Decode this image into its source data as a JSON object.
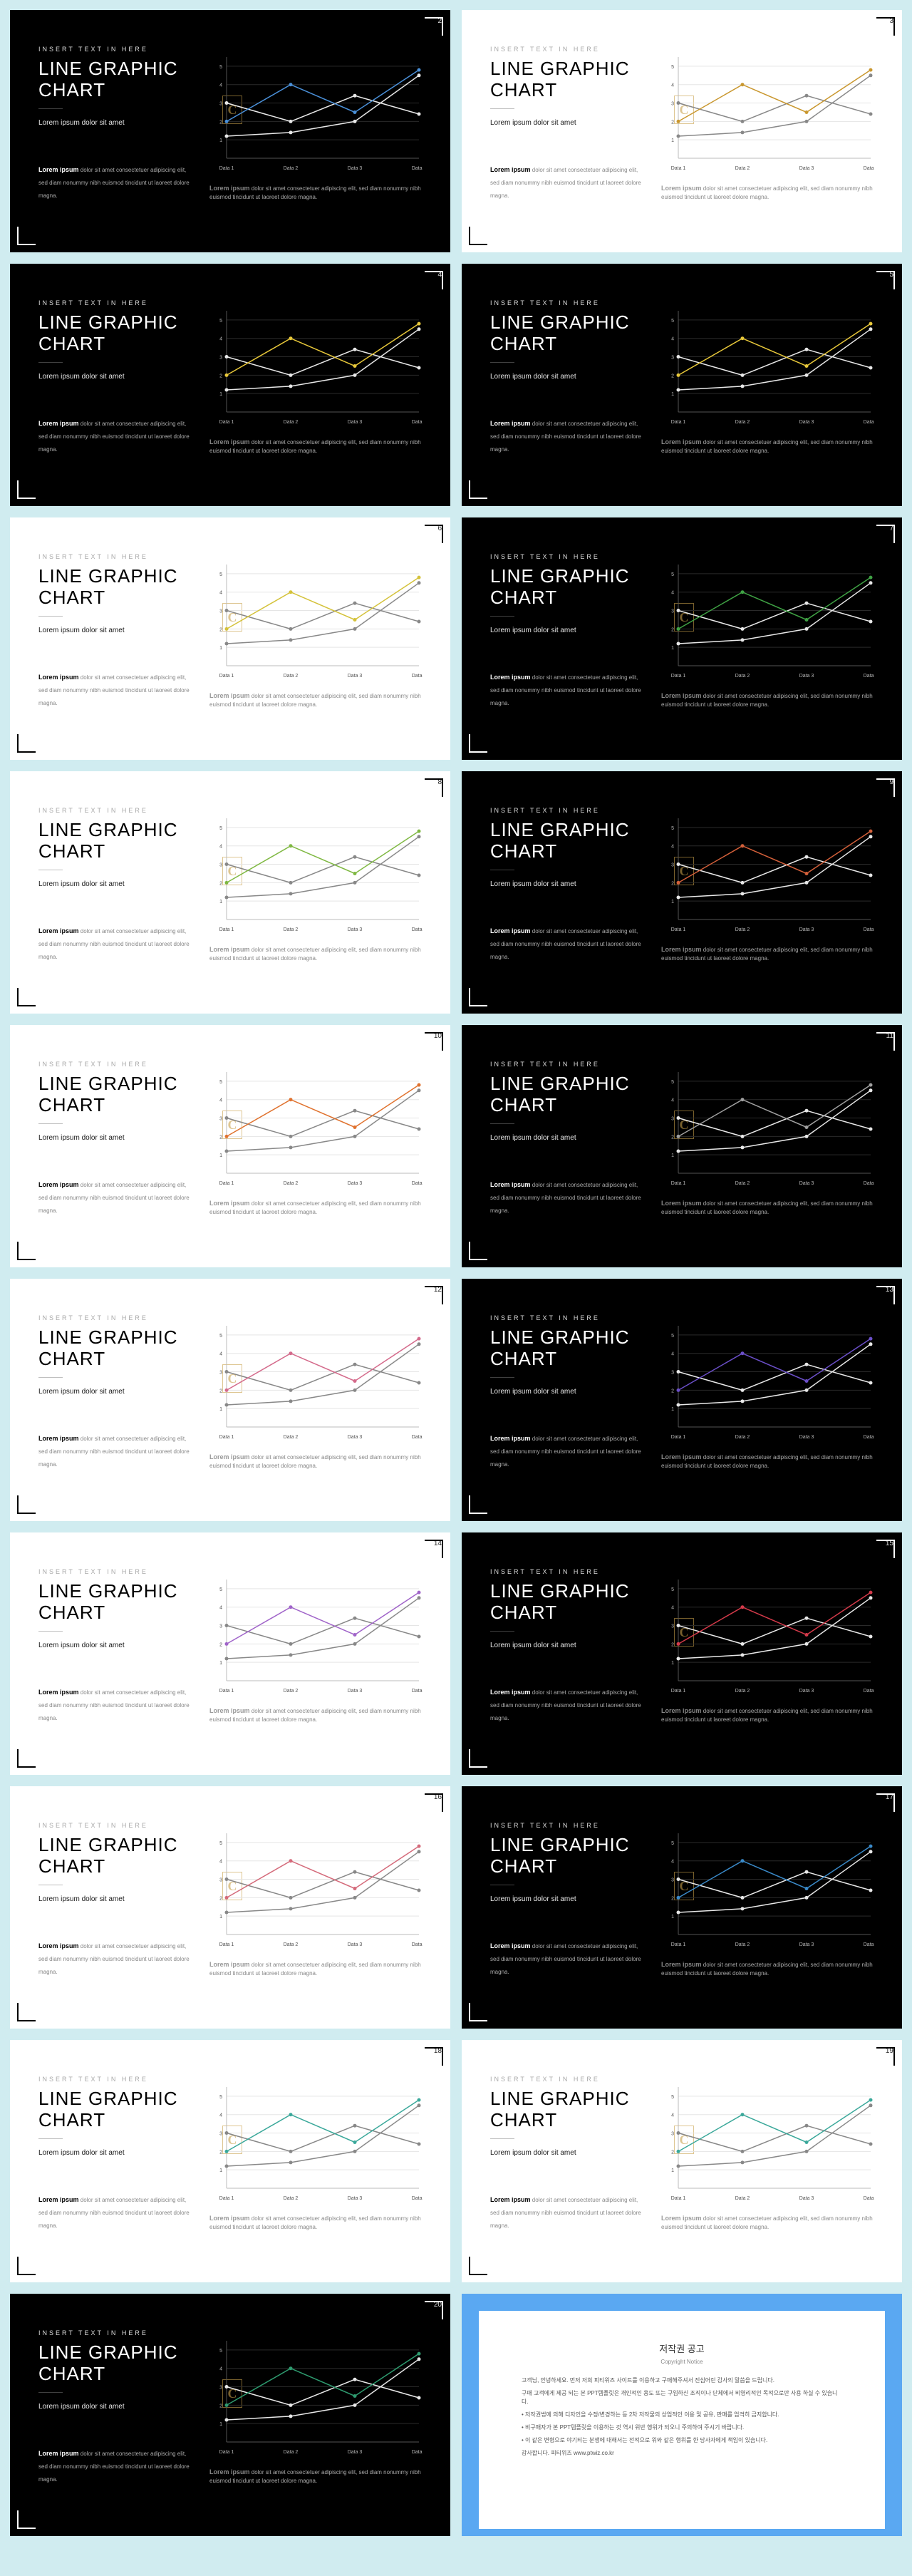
{
  "common": {
    "overline": "INSERT TEXT IN HERE",
    "title": "LINE GRAPHIC CHART",
    "subtitle": "Lorem ipsum dolor sit amet",
    "desc_label": "Lorem ipsum",
    "desc_text": " dolor sit amet consectetuer adipiscing elit, sed diam nonummy nibh euismod tincidunt ut laoreet dolore magna.",
    "footnote_label": "Lorem ipsum",
    "footnote_text": " dolor sit amet consectetuer adipiscing elit, sed diam nonummy nibh euismod tincidunt ut laoreet dolore magna.",
    "watermark_letter": "C"
  },
  "chart": {
    "type": "line",
    "x_labels": [
      "Data 1",
      "Data 2",
      "Data 3",
      "Data 4"
    ],
    "y_ticks": [
      1,
      2,
      3,
      4,
      5
    ],
    "ylim": [
      0,
      5.5
    ],
    "series_neutral": {
      "values": [
        1.2,
        1.4,
        2.0,
        4.5
      ]
    },
    "series_shape_a": {
      "values": [
        2.0,
        4.0,
        2.5,
        4.8
      ]
    },
    "series_shape_b": {
      "values": [
        3.0,
        2.0,
        3.4,
        2.4
      ]
    },
    "axis_fontsize": 7,
    "line_width": 1.5,
    "marker_radius": 2.5
  },
  "style_dark": {
    "background": "#000000",
    "text": "#ffffff",
    "grid": "#2a2a2a",
    "axis": "#555555",
    "neutral_line": "#e8e8e8"
  },
  "style_light": {
    "background": "#ffffff",
    "text": "#000000",
    "grid": "#e5e5e5",
    "axis": "#bbbbbb",
    "neutral_line": "#888888"
  },
  "slides": [
    {
      "num": 2,
      "theme": "dark",
      "accent_a": "#4a90d9",
      "accent_b": "#e8e8e8",
      "watermark": true
    },
    {
      "num": 3,
      "theme": "light",
      "accent_a": "#c9972e",
      "accent_b": "#888888",
      "watermark": true
    },
    {
      "num": 4,
      "theme": "dark",
      "accent_a": "#e8c83a",
      "accent_b": "#e8e8e8",
      "watermark": false
    },
    {
      "num": 5,
      "theme": "dark",
      "accent_a": "#e8c83a",
      "accent_b": "#e8e8e8",
      "watermark": false
    },
    {
      "num": 6,
      "theme": "light",
      "accent_a": "#d4c23a",
      "accent_b": "#888888",
      "watermark": true
    },
    {
      "num": 7,
      "theme": "dark",
      "accent_a": "#3fa244",
      "accent_b": "#e8e8e8",
      "watermark": true
    },
    {
      "num": 8,
      "theme": "light",
      "accent_a": "#7fb842",
      "accent_b": "#888888",
      "watermark": true
    },
    {
      "num": 9,
      "theme": "dark",
      "accent_a": "#d4603a",
      "accent_b": "#e8e8e8",
      "watermark": true
    },
    {
      "num": 10,
      "theme": "light",
      "accent_a": "#e0722e",
      "accent_b": "#888888",
      "watermark": true
    },
    {
      "num": 11,
      "theme": "dark",
      "accent_a": "#a0a0a0",
      "accent_b": "#e8e8e8",
      "watermark": true
    },
    {
      "num": 12,
      "theme": "light",
      "accent_a": "#d46a8b",
      "accent_b": "#888888",
      "watermark": true
    },
    {
      "num": 13,
      "theme": "dark",
      "accent_a": "#6b4fc9",
      "accent_b": "#e8e8e8",
      "watermark": false
    },
    {
      "num": 14,
      "theme": "light",
      "accent_a": "#a064c9",
      "accent_b": "#888888",
      "watermark": false
    },
    {
      "num": 15,
      "theme": "dark",
      "accent_a": "#d43a4a",
      "accent_b": "#e8e8e8",
      "watermark": true
    },
    {
      "num": 16,
      "theme": "light",
      "accent_a": "#d46a7a",
      "accent_b": "#888888",
      "watermark": true
    },
    {
      "num": 17,
      "theme": "dark",
      "accent_a": "#3a8ac9",
      "accent_b": "#e8e8e8",
      "watermark": true
    },
    {
      "num": 18,
      "theme": "light",
      "accent_a": "#3aa89a",
      "accent_b": "#888888",
      "watermark": true
    },
    {
      "num": 19,
      "theme": "light",
      "accent_a": "#3aa89a",
      "accent_b": "#888888",
      "watermark": true
    },
    {
      "num": 20,
      "theme": "dark",
      "accent_a": "#2e9b6f",
      "accent_b": "#e8e8e8",
      "watermark": true
    }
  ],
  "copyright": {
    "title": "저작권 공고",
    "subtitle": "Copyright Notice",
    "body_lines": [
      "고객님, 안녕하세요. 먼저 저희 피티위즈 사이트를 이용하고 구매해주셔서 진심어린 감사의 말씀을 드립니다.",
      "구매 고객에게 제공 되는 본 PPT템플릿은 개인적인 용도 또는 구입하신 조직이나 단체에서 비영리적인 목적으로만 사용 하실 수 있습니다.",
      "• 저작권법에 의해 디자인을 수정/변경하는 등 2차 저작물의 상업적인 이용 및 공유, 판매를 엄격히 금지합니다.",
      "• 비구매자가 본 PPT템플릿을 이용하는 것 역시 위반 행위가 되오니 주의하여 주시기 바랍니다.",
      "• 이 같은 변형으로 야기되는 분쟁에 대해서는 전적으로 위와 같은 행위를 한 당사자에게 책임이 있습니다.",
      "감사합니다. 피티위즈 www.ptwiz.co.kr"
    ]
  }
}
